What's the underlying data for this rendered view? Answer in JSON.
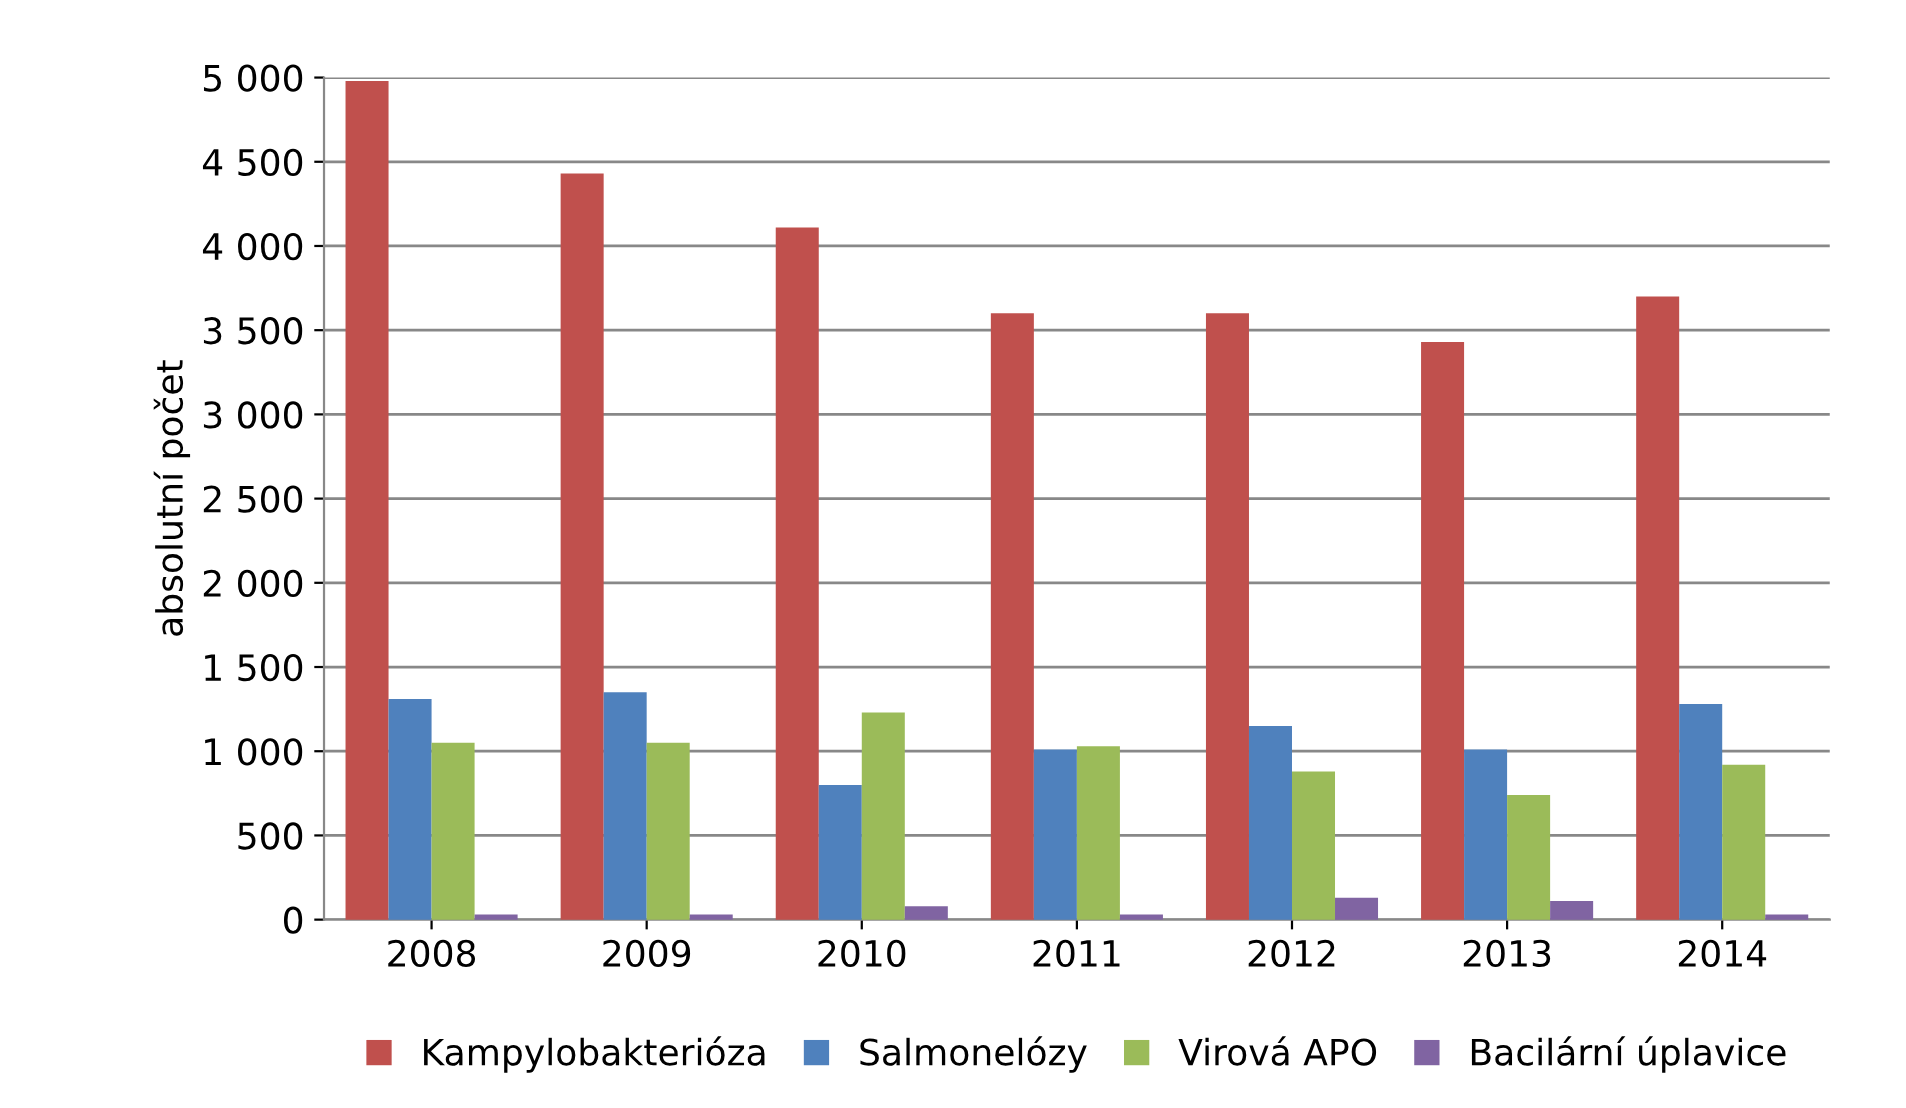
{
  "chart_data": {
    "type": "bar",
    "ylabel": "absolutní počet",
    "categories": [
      "2008",
      "2009",
      "2010",
      "2011",
      "2012",
      "2013",
      "2014"
    ],
    "series": [
      {
        "name": "Kampylobakterióza",
        "color": "#c0504d",
        "values": [
          4980,
          4430,
          4110,
          3600,
          3600,
          3430,
          3700
        ]
      },
      {
        "name": "Salmonelózy",
        "color": "#4f81bd",
        "values": [
          1310,
          1350,
          800,
          1010,
          1150,
          1010,
          1280
        ]
      },
      {
        "name": "Virová APO",
        "color": "#9bbb59",
        "values": [
          1050,
          1050,
          1230,
          1030,
          880,
          740,
          920
        ]
      },
      {
        "name": "Bacilární úplavice",
        "color": "#8064a2",
        "values": [
          30,
          30,
          80,
          30,
          130,
          110,
          30
        ]
      }
    ],
    "ylim": [
      0,
      5000
    ],
    "yticks": [
      0,
      500,
      {
        "value": 1000,
        "label": "1 000"
      },
      {
        "value": 1500,
        "label": "1 500"
      },
      {
        "value": 2000,
        "label": "2 000"
      },
      {
        "value": 2500,
        "label": "2 500"
      },
      {
        "value": 3000,
        "label": "3 000"
      },
      {
        "value": 3500,
        "label": "3 500"
      },
      {
        "value": 4000,
        "label": "4 000"
      },
      {
        "value": 4500,
        "label": "4 500"
      },
      {
        "value": 5000,
        "label": "5 000"
      }
    ],
    "grid": "y",
    "legend": "bottom"
  }
}
